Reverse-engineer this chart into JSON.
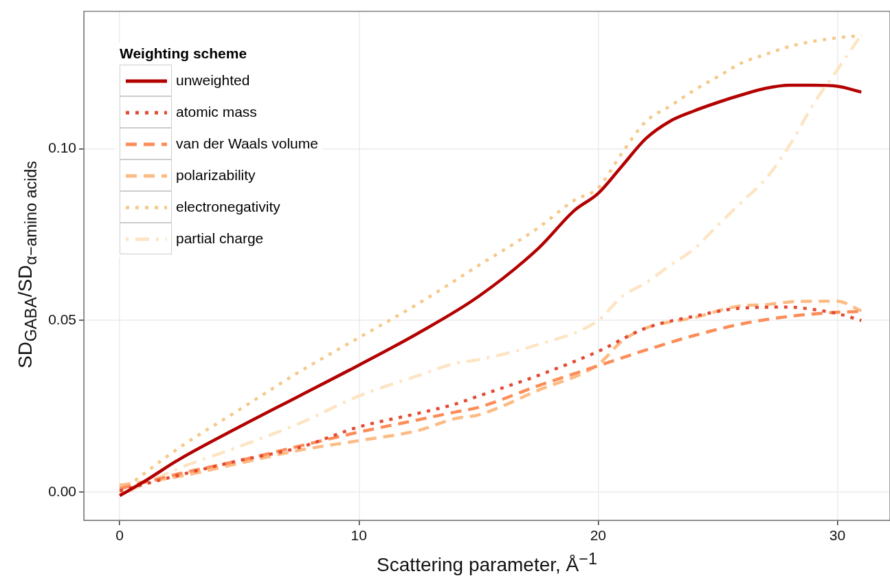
{
  "chart_data": {
    "type": "line",
    "xlabel": "Scattering parameter, Å$^{−1}$",
    "ylabel": "SD$_{GABA}$/SD$_{α−amino acids}$",
    "legend_title": "Weighting scheme",
    "legend": "top left",
    "grid": true,
    "marker": "none",
    "xlim": [
      -1.5,
      32.2
    ],
    "ylim": [
      -0.0082,
      0.14
    ],
    "xticks": [
      0,
      10,
      20,
      30
    ],
    "yticks": [
      {
        "value": 0,
        "label": "0.00"
      },
      {
        "value": 0.05,
        "label": "0.05"
      },
      {
        "value": 0.1,
        "label": "0.10"
      }
    ],
    "series": [
      {
        "name": "unweighted",
        "color": "#b30000",
        "line_style": "solid",
        "x": [
          0,
          1,
          2.5,
          5,
          7.5,
          10,
          12.5,
          15,
          17.5,
          19,
          20,
          21,
          22,
          23,
          24,
          25,
          26,
          27,
          28,
          29,
          30,
          31
        ],
        "values": [
          -0.001,
          0.003,
          0.0096,
          0.019,
          0.028,
          0.037,
          0.0464,
          0.057,
          0.071,
          0.082,
          0.087,
          0.095,
          0.103,
          0.108,
          0.111,
          0.1135,
          0.1157,
          0.1176,
          0.1185,
          0.1185,
          0.1182,
          0.1165
        ]
      },
      {
        "name": "atomic mass",
        "color": "#e34a33",
        "line_style": "dotted",
        "x": [
          0,
          2.5,
          5,
          7.5,
          10,
          12.5,
          14,
          15,
          17.5,
          20,
          22,
          24,
          26,
          28,
          29,
          30,
          31
        ],
        "values": [
          0.0004,
          0.005,
          0.0092,
          0.013,
          0.019,
          0.023,
          0.0256,
          0.028,
          0.034,
          0.041,
          0.0478,
          0.0512,
          0.0536,
          0.0539,
          0.0532,
          0.052,
          0.05
        ]
      },
      {
        "name": "van der Waals volume",
        "color": "#fc8d59",
        "line_style": "dashed",
        "x": [
          0,
          2.5,
          5,
          7.5,
          10,
          12.5,
          14,
          15,
          17.5,
          20,
          22,
          24,
          26,
          28,
          30,
          31
        ],
        "values": [
          0.001,
          0.0054,
          0.0092,
          0.0134,
          0.0175,
          0.0211,
          0.0233,
          0.0247,
          0.031,
          0.0368,
          0.0414,
          0.0456,
          0.049,
          0.0512,
          0.0524,
          0.0526
        ]
      },
      {
        "name": "polarizability",
        "color": "#fdbb84",
        "line_style": "dashed",
        "x": [
          0,
          2.5,
          5,
          7.5,
          10,
          12.5,
          14,
          15,
          17.5,
          20,
          21,
          22,
          24,
          26,
          27,
          28,
          29,
          30,
          31
        ],
        "values": [
          0.002,
          0.0046,
          0.0084,
          0.0122,
          0.015,
          0.018,
          0.0214,
          0.0225,
          0.0297,
          0.0372,
          0.044,
          0.0478,
          0.0508,
          0.0543,
          0.0546,
          0.0554,
          0.0556,
          0.0556,
          0.0528
        ]
      },
      {
        "name": "electronegativity",
        "color": "#f5c98a",
        "line_style": "dotted",
        "x": [
          0,
          2.5,
          5,
          7.5,
          10,
          12.5,
          15,
          17.5,
          19,
          20,
          21,
          22,
          23,
          24,
          25,
          26,
          27,
          28,
          29,
          30,
          31
        ],
        "values": [
          0,
          0.013,
          0.024,
          0.035,
          0.045,
          0.055,
          0.066,
          0.077,
          0.085,
          0.0886,
          0.0988,
          0.108,
          0.1124,
          0.117,
          0.121,
          0.125,
          0.1275,
          0.1298,
          0.1313,
          0.1323,
          0.133
        ]
      },
      {
        "name": "partial charge",
        "color": "#fde5c4",
        "line_style": "dashdot",
        "x": [
          0,
          2.5,
          5,
          7.5,
          10,
          12.5,
          14,
          15,
          17.5,
          20,
          21,
          22,
          23,
          24,
          25,
          26,
          27,
          28,
          29,
          30,
          31
        ],
        "values": [
          -0.001,
          0.007,
          0.0133,
          0.02,
          0.028,
          0.034,
          0.0375,
          0.0386,
          0.043,
          0.05,
          0.057,
          0.061,
          0.066,
          0.0708,
          0.0777,
          0.0845,
          0.0912,
          0.101,
          0.113,
          0.123,
          0.1332
        ]
      }
    ]
  }
}
